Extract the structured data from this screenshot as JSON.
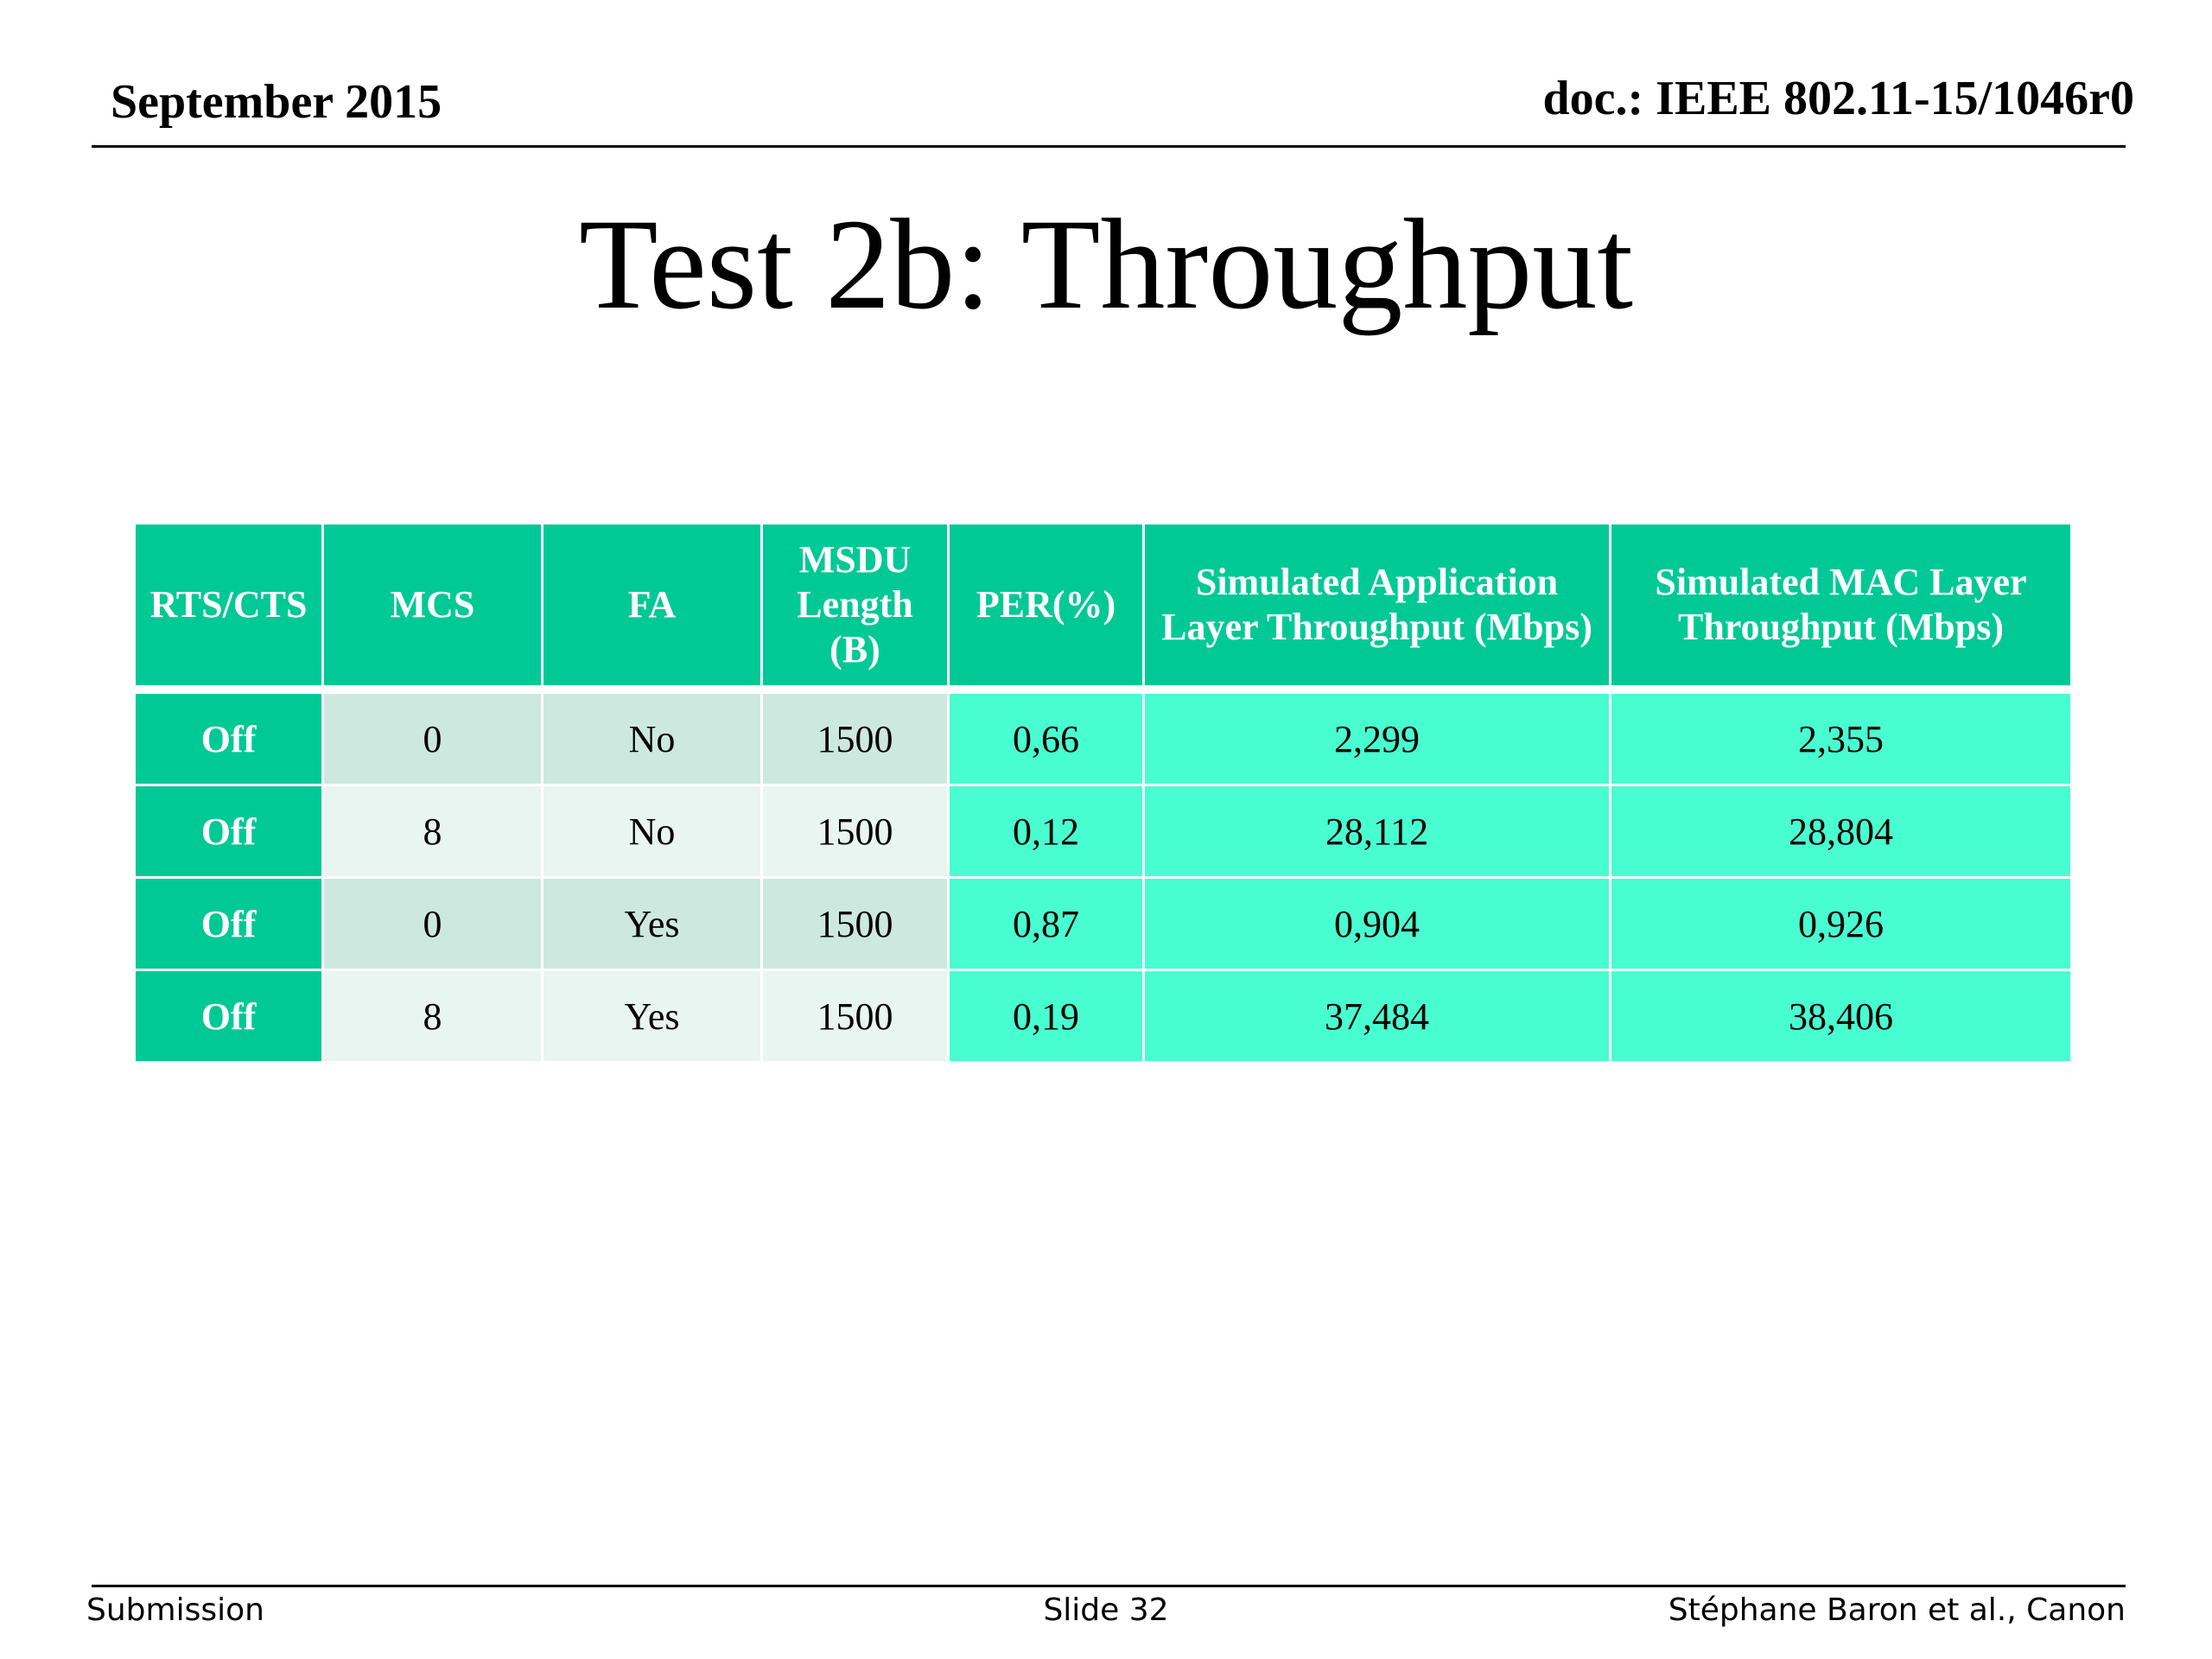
{
  "header": {
    "date": "September 2015",
    "doc_id": "doc.: IEEE 802.11-15/1046r0"
  },
  "title": "Test 2b: Throughput",
  "table": {
    "headers": [
      "RTS/CTS",
      "MCS",
      "FA",
      "MSDU Length (B)",
      "PER(%)",
      "Simulated Application Layer Throughput (Mbps)",
      "Simulated MAC Layer Throughput   (Mbps)"
    ],
    "rows": [
      [
        "Off",
        "0",
        "No",
        "1500",
        "0,66",
        "2,299",
        "2,355"
      ],
      [
        "Off",
        "8",
        "No",
        "1500",
        "0,12",
        "28,112",
        "28,804"
      ],
      [
        "Off",
        "0",
        "Yes",
        "1500",
        "0,87",
        "0,904",
        "0,926"
      ],
      [
        "Off",
        "8",
        "Yes",
        "1500",
        "0,19",
        "37,484",
        "38,406"
      ]
    ]
  },
  "footer": {
    "left": "Submission",
    "center": "Slide 32",
    "right": "Stéphane Baron et al., Canon"
  },
  "colors": {
    "header_fill": "#00c996",
    "first_column_fill": "#00c996",
    "light_dark_row": "#cde9df",
    "light_light_row": "#e8f5f0",
    "bright_fill": "#48fdd0"
  }
}
